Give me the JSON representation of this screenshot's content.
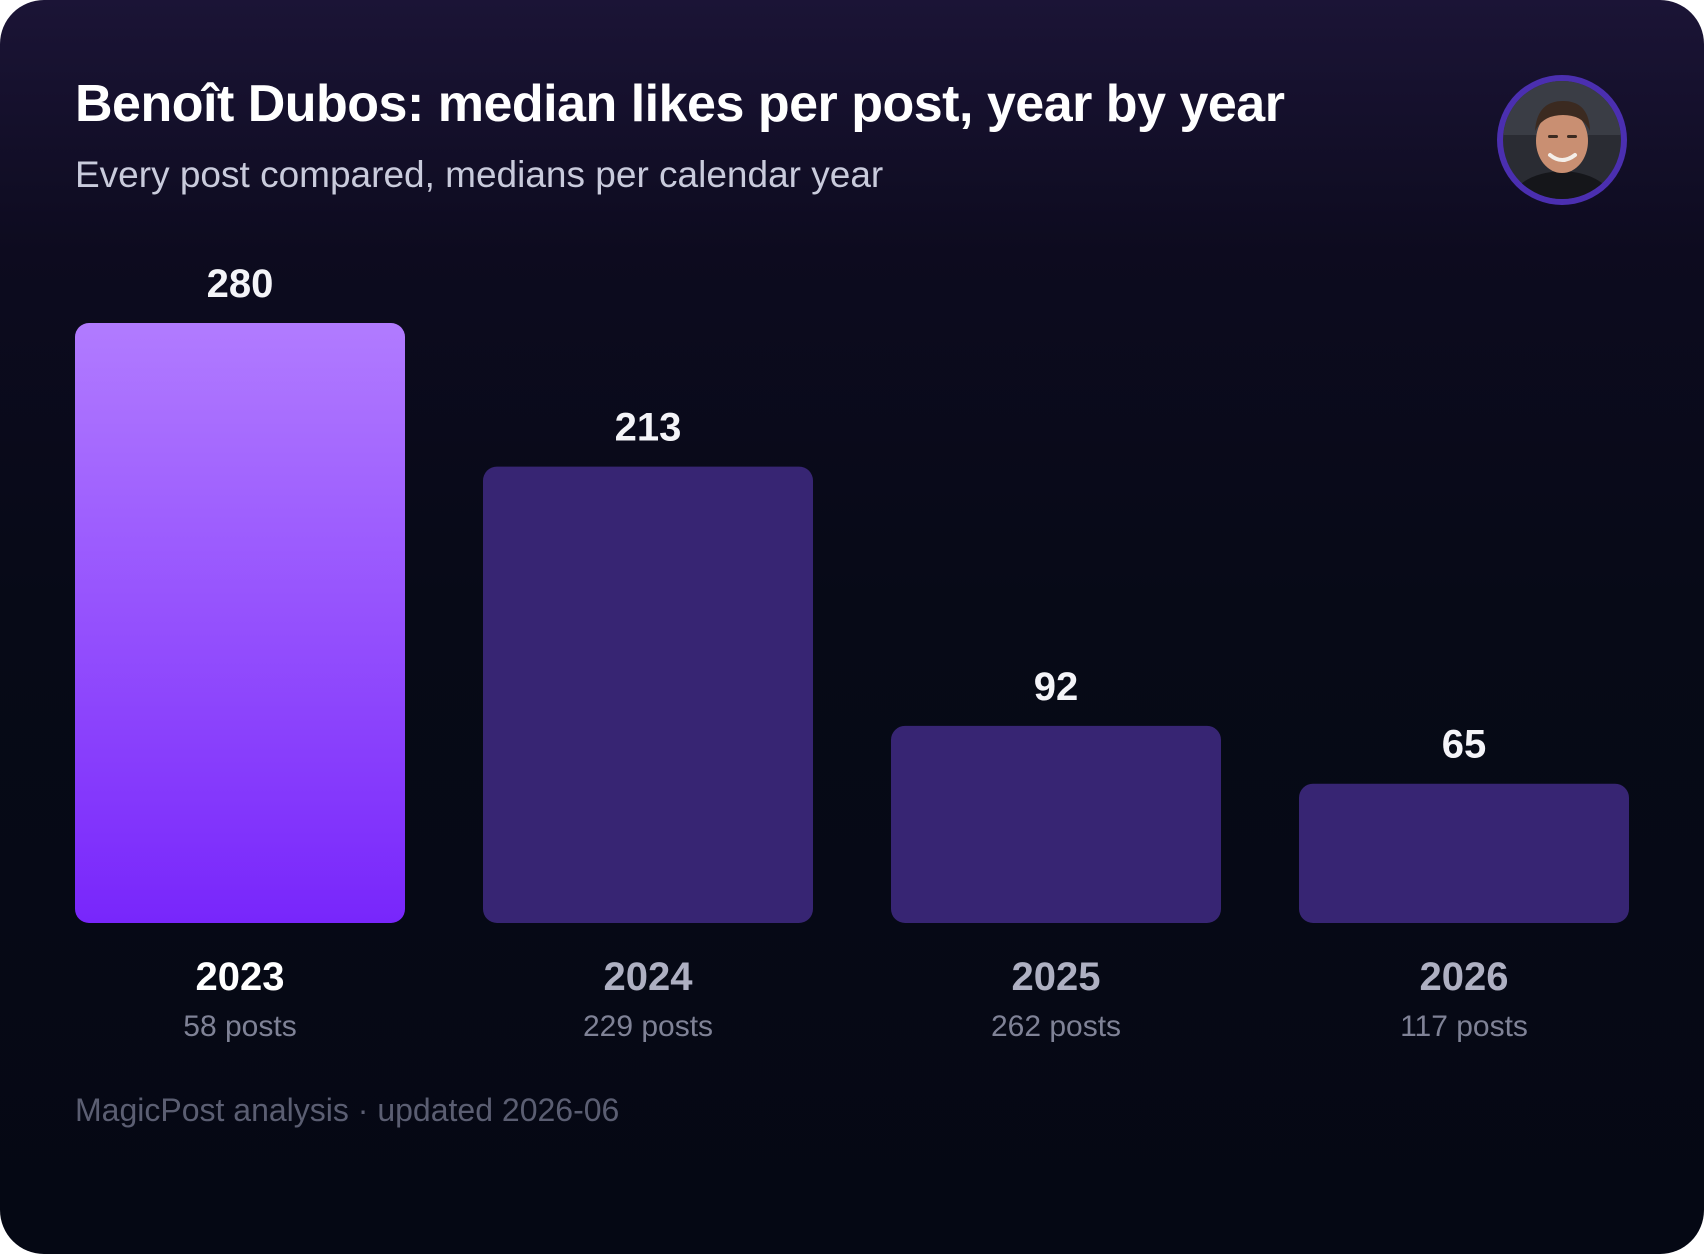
{
  "header": {
    "title": "Benoît Dubos: median likes per post, year by year",
    "subtitle": "Every post compared, medians per calendar year"
  },
  "footer": {
    "source": "MagicPost analysis · updated 2026-06"
  },
  "colors": {
    "highlight_top": "#b17bff",
    "highlight_bottom": "#7826fb",
    "bar": "#372573",
    "value_label": "#f4f4f8",
    "year_highlight": "#ffffff",
    "year_muted": "#aeb0c2",
    "posts_label": "#7f8296"
  },
  "chart_data": {
    "type": "bar",
    "title": "Benoît Dubos: median likes per post, year by year",
    "subtitle": "Every post compared, medians per calendar year",
    "categories": [
      "2023",
      "2024",
      "2025",
      "2026"
    ],
    "values": [
      280,
      213,
      92,
      65
    ],
    "value_labels": [
      "280",
      "213",
      "92",
      "65"
    ],
    "post_counts": [
      "58 posts",
      "229 posts",
      "262 posts",
      "117 posts"
    ],
    "highlighted_category": "2023",
    "ylim": [
      0,
      280
    ],
    "grid": false,
    "legend": "none"
  }
}
